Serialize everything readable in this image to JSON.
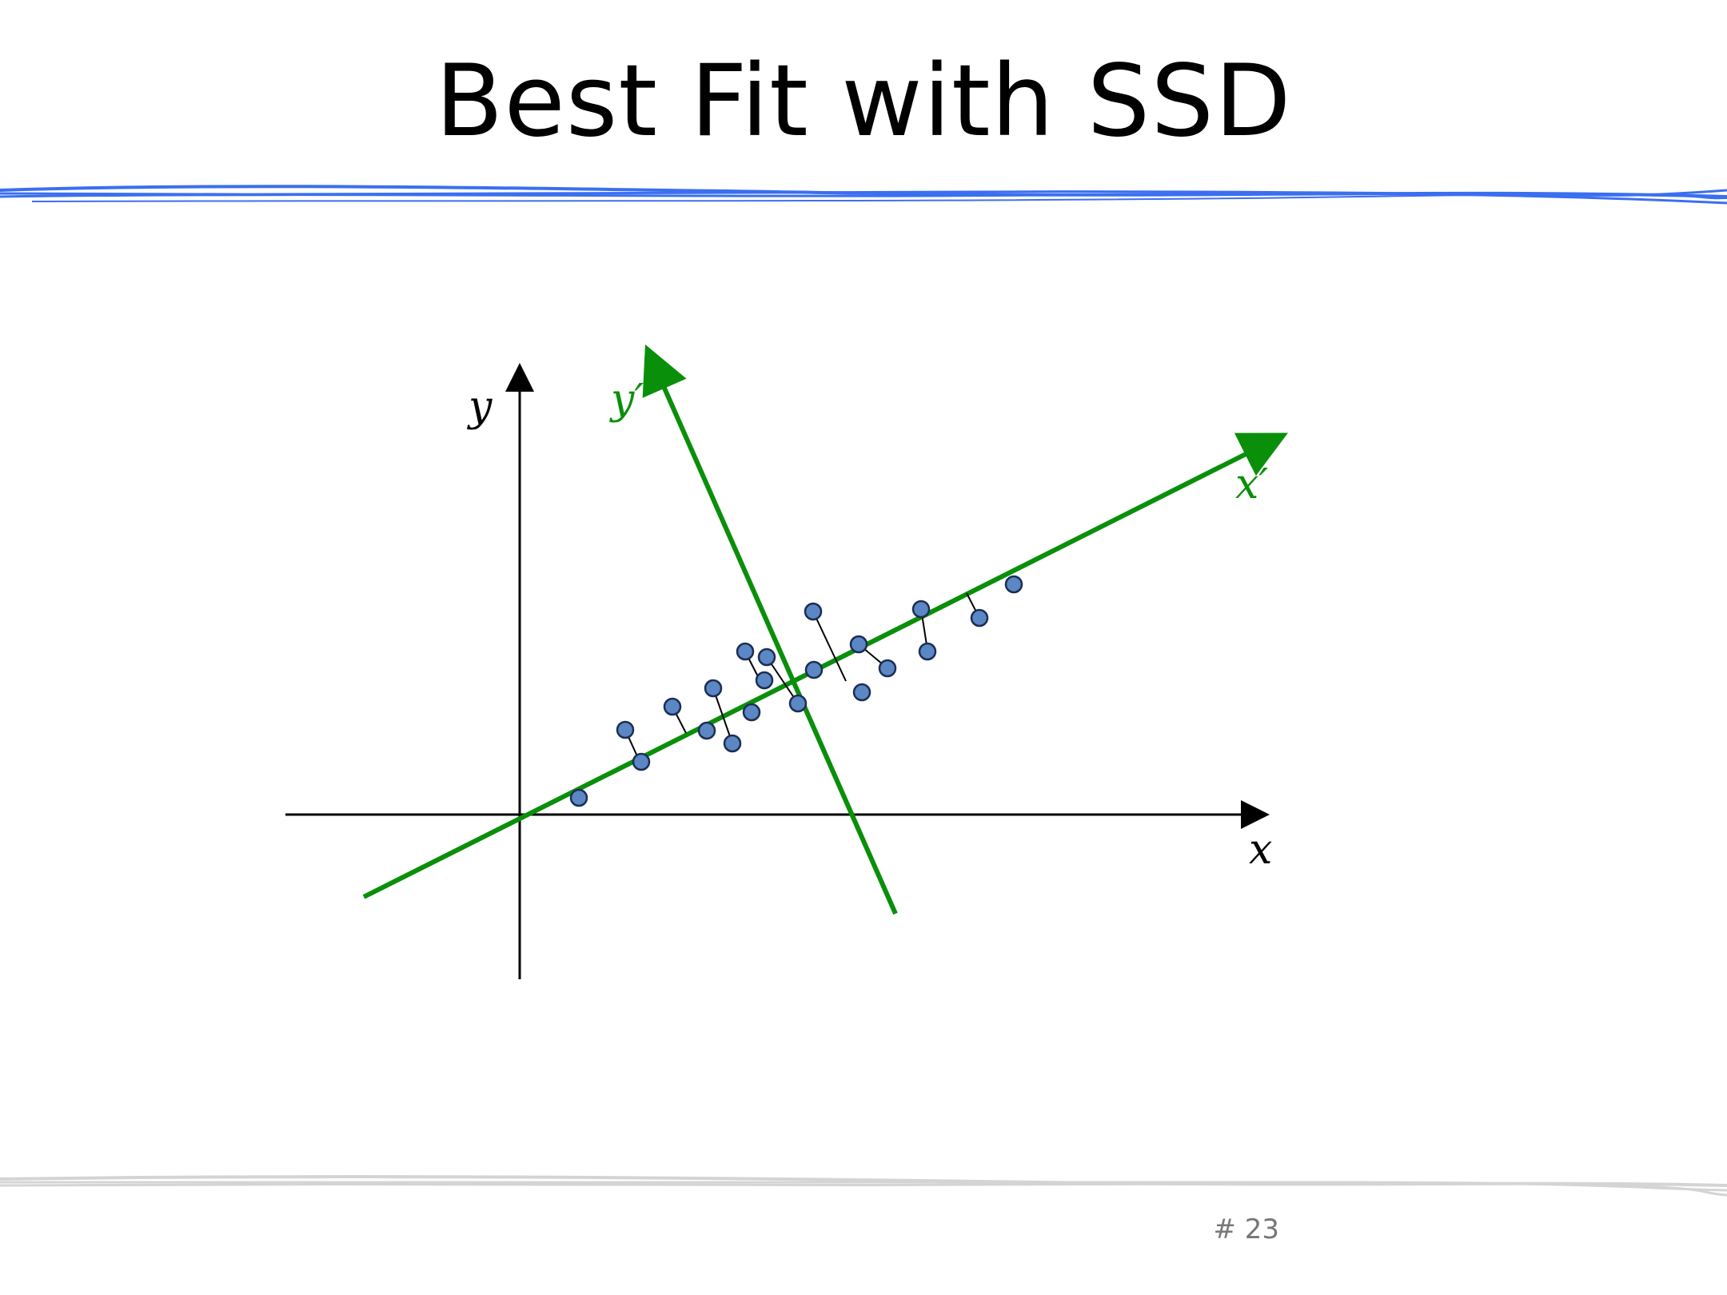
{
  "slide": {
    "title": "Best Fit with SSD",
    "page_number": "# 23"
  },
  "diagram": {
    "axis_labels": {
      "x": "x",
      "y": "y",
      "x_prime": "x′",
      "y_prime": "y′"
    },
    "colors": {
      "axes": "#000000",
      "fit_axes": "#0a8f0a",
      "points_fill": "#5b87c5",
      "points_stroke": "#1c2e52",
      "residuals": "#000000",
      "top_rule": "#3b6ff0",
      "bottom_rule": "#d4d4d4"
    }
  }
}
